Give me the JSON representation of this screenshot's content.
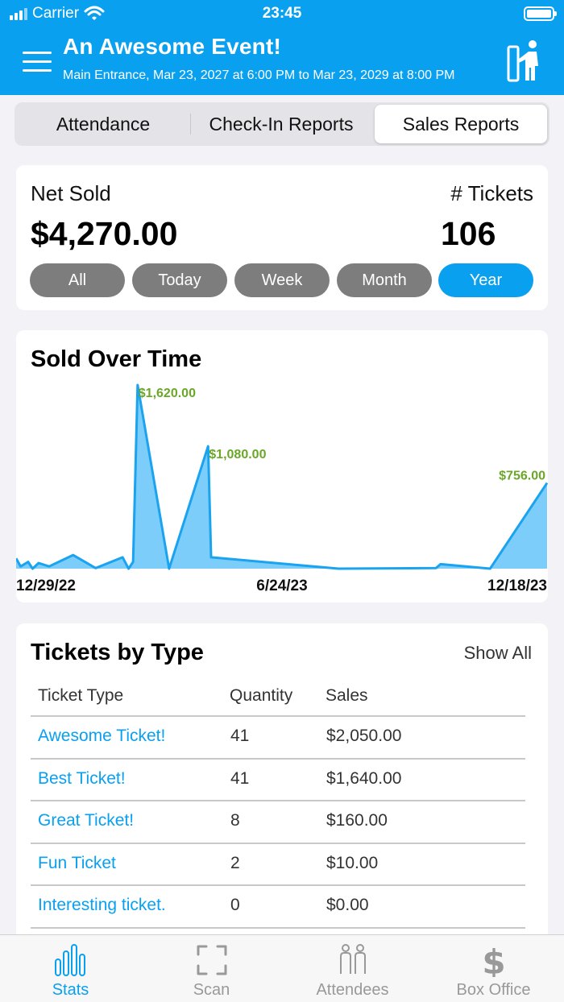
{
  "status_bar": {
    "carrier": "Carrier",
    "time": "23:45"
  },
  "header": {
    "title": "An Awesome Event!",
    "subtitle": "Main Entrance, Mar 23, 2027 at 6:00 PM to Mar 23, 2029 at 8:00 PM",
    "menu_icon": "hamburger-menu-icon",
    "kiosk_icon": "kiosk-person-icon"
  },
  "tabs": [
    {
      "label": "Attendance",
      "active": false
    },
    {
      "label": "Check-In Reports",
      "active": false
    },
    {
      "label": "Sales Reports",
      "active": true
    }
  ],
  "summary": {
    "net_sold_label": "Net Sold",
    "net_sold_value": "$4,270.00",
    "tickets_label": "# Tickets",
    "tickets_value": "106",
    "periods": [
      {
        "label": "All",
        "active": false
      },
      {
        "label": "Today",
        "active": false
      },
      {
        "label": "Week",
        "active": false
      },
      {
        "label": "Month",
        "active": false
      },
      {
        "label": "Year",
        "active": true
      }
    ]
  },
  "chart": {
    "title": "Sold Over Time",
    "accent_color": "#1aa3ee",
    "fill_color": "#7dcdfb",
    "label_color": "#6aa728"
  },
  "chart_data": {
    "type": "area",
    "title": "Sold Over Time",
    "x_tick_labels": [
      "12/29/22",
      "6/24/23",
      "12/18/23"
    ],
    "x_range": [
      "2022-12-29",
      "2023-12-18"
    ],
    "y_range": [
      0,
      1620
    ],
    "points": [
      {
        "x": "2022-12-29",
        "y": 90
      },
      {
        "x": "2023-01-01",
        "y": 20
      },
      {
        "x": "2023-01-06",
        "y": 60
      },
      {
        "x": "2023-01-09",
        "y": 0
      },
      {
        "x": "2023-01-13",
        "y": 50
      },
      {
        "x": "2023-01-20",
        "y": 20
      },
      {
        "x": "2023-02-05",
        "y": 120
      },
      {
        "x": "2023-02-20",
        "y": 5
      },
      {
        "x": "2023-03-10",
        "y": 100
      },
      {
        "x": "2023-03-14",
        "y": 0
      },
      {
        "x": "2023-03-17",
        "y": 60
      },
      {
        "x": "2023-03-20",
        "y": 1620,
        "label": "$1,620.00"
      },
      {
        "x": "2023-04-10",
        "y": 0
      },
      {
        "x": "2023-05-06",
        "y": 1080,
        "label": "$1,080.00"
      },
      {
        "x": "2023-05-08",
        "y": 100
      },
      {
        "x": "2023-08-01",
        "y": 0
      },
      {
        "x": "2023-10-05",
        "y": 5
      },
      {
        "x": "2023-10-08",
        "y": 40
      },
      {
        "x": "2023-11-10",
        "y": 0
      },
      {
        "x": "2023-12-18",
        "y": 756,
        "label": "$756.00"
      }
    ]
  },
  "tickets_by_type": {
    "title": "Tickets by Type",
    "show_all": "Show All",
    "columns": [
      "Ticket Type",
      "Quantity",
      "Sales"
    ],
    "rows": [
      {
        "type": "Awesome Ticket!",
        "quantity": "41",
        "sales": "$2,050.00"
      },
      {
        "type": "Best Ticket!",
        "quantity": "41",
        "sales": "$1,640.00"
      },
      {
        "type": "Great Ticket!",
        "quantity": "8",
        "sales": "$160.00"
      },
      {
        "type": "Fun Ticket",
        "quantity": "2",
        "sales": "$10.00"
      },
      {
        "type": "Interesting ticket.",
        "quantity": "0",
        "sales": "$0.00"
      }
    ]
  },
  "tabbar": {
    "items": [
      {
        "label": "Stats",
        "icon": "bar-chart-icon",
        "active": true
      },
      {
        "label": "Scan",
        "icon": "scan-frame-icon",
        "active": false
      },
      {
        "label": "Attendees",
        "icon": "attendees-icon",
        "active": false
      },
      {
        "label": "Box Office",
        "icon": "dollar-icon",
        "active": false
      }
    ]
  }
}
